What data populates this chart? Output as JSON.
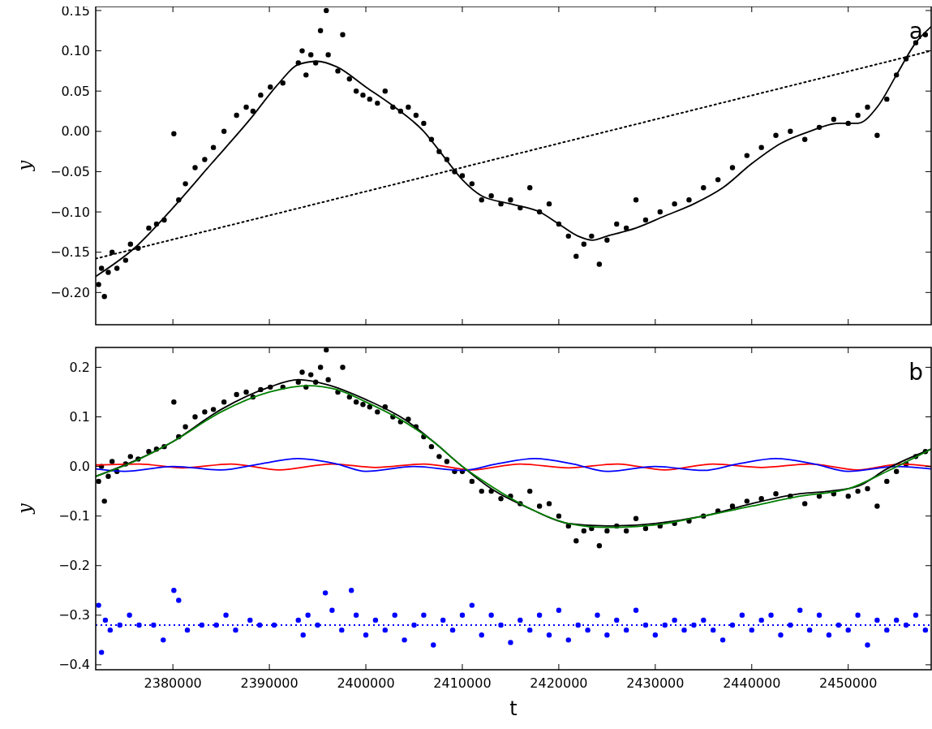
{
  "chart_data": [
    {
      "type": "scatter",
      "ylabel": "y",
      "annotations": [
        "a"
      ],
      "xlim": [
        2372000,
        2458600
      ],
      "ylim": [
        -0.24,
        0.155
      ],
      "tick_labels": "y",
      "xticks": [
        2380000,
        2390000,
        2400000,
        2410000,
        2420000,
        2430000,
        2440000,
        2450000
      ],
      "yticks": [
        {
          "value": -0.2,
          "label": "−0.20"
        },
        {
          "value": -0.15,
          "label": "−0.15"
        },
        {
          "value": -0.1,
          "label": "−0.10"
        },
        {
          "value": -0.05,
          "label": "−0.05"
        },
        {
          "value": 0,
          "label": "0.00"
        },
        {
          "value": 0.05,
          "label": "0.05"
        },
        {
          "value": 0.1,
          "label": "0.10"
        },
        {
          "value": 0.15,
          "label": "0.15"
        }
      ],
      "grid": false,
      "series": [
        {
          "type": "scatter",
          "color": "#000000",
          "marker": "circle",
          "x": [
            2372300,
            2372600,
            2372900,
            2373300,
            2373700,
            2374200,
            2375100,
            2375600,
            2376400,
            2377500,
            2378300,
            2379100,
            2380100,
            2380600,
            2381300,
            2382300,
            2383300,
            2384200,
            2385300,
            2386600,
            2387600,
            2388300,
            2389100,
            2390100,
            2391400,
            2393000,
            2393400,
            2393800,
            2394300,
            2394800,
            2395300,
            2395900,
            2396100,
            2397100,
            2397600,
            2398300,
            2399000,
            2399700,
            2400400,
            2401200,
            2402000,
            2402800,
            2403600,
            2404400,
            2405200,
            2406000,
            2406800,
            2407600,
            2408400,
            2409200,
            2410000,
            2411000,
            2412000,
            2413000,
            2414000,
            2415000,
            2416000,
            2417000,
            2418000,
            2419000,
            2420000,
            2421000,
            2421800,
            2422600,
            2423400,
            2424200,
            2425000,
            2426000,
            2427000,
            2428000,
            2429000,
            2430500,
            2432000,
            2433500,
            2435000,
            2436500,
            2438000,
            2439500,
            2441000,
            2442500,
            2444000,
            2445500,
            2447000,
            2448500,
            2450000,
            2451000,
            2452000,
            2453000,
            2454000,
            2455000,
            2456000,
            2457000,
            2458000
          ],
          "values": [
            -0.19,
            -0.17,
            -0.205,
            -0.175,
            -0.15,
            -0.17,
            -0.16,
            -0.14,
            -0.145,
            -0.12,
            -0.115,
            -0.11,
            -0.003,
            -0.085,
            -0.065,
            -0.045,
            -0.035,
            -0.02,
            0.0,
            0.02,
            0.03,
            0.025,
            0.045,
            0.055,
            0.06,
            0.085,
            0.1,
            0.07,
            0.095,
            0.085,
            0.125,
            0.15,
            0.095,
            0.075,
            0.12,
            0.065,
            0.05,
            0.045,
            0.04,
            0.035,
            0.05,
            0.03,
            0.025,
            0.03,
            0.02,
            0.01,
            -0.01,
            -0.025,
            -0.035,
            -0.05,
            -0.055,
            -0.065,
            -0.085,
            -0.08,
            -0.09,
            -0.085,
            -0.095,
            -0.07,
            -0.1,
            -0.09,
            -0.115,
            -0.13,
            -0.155,
            -0.14,
            -0.13,
            -0.165,
            -0.135,
            -0.115,
            -0.12,
            -0.085,
            -0.11,
            -0.1,
            -0.09,
            -0.085,
            -0.07,
            -0.06,
            -0.045,
            -0.03,
            -0.02,
            -0.005,
            0.0,
            -0.01,
            0.005,
            0.015,
            0.01,
            0.02,
            0.03,
            -0.005,
            0.04,
            0.07,
            0.09,
            0.11,
            0.12
          ]
        },
        {
          "type": "line",
          "color": "#000000",
          "line_style": "solid",
          "x": [
            2372000,
            2376000,
            2380000,
            2384000,
            2388000,
            2391000,
            2393000,
            2395000,
            2397000,
            2400000,
            2403000,
            2406000,
            2408000,
            2410000,
            2412000,
            2415000,
            2418000,
            2420000,
            2422000,
            2423500,
            2425000,
            2428000,
            2431000,
            2434000,
            2437000,
            2440000,
            2443000,
            2446000,
            2449000,
            2451000,
            2453000,
            2455000,
            2457000,
            2458600
          ],
          "values": [
            -0.18,
            -0.145,
            -0.095,
            -0.04,
            0.015,
            0.06,
            0.083,
            0.087,
            0.08,
            0.055,
            0.03,
            0.0,
            -0.03,
            -0.06,
            -0.08,
            -0.09,
            -0.1,
            -0.115,
            -0.13,
            -0.135,
            -0.13,
            -0.12,
            -0.105,
            -0.09,
            -0.07,
            -0.04,
            -0.015,
            0.0,
            0.01,
            0.01,
            0.03,
            0.07,
            0.11,
            0.13
          ]
        },
        {
          "type": "line",
          "color": "#000000",
          "line_style": "dotted",
          "x": [
            2372000,
            2458600
          ],
          "values": [
            -0.158,
            0.1
          ]
        }
      ]
    },
    {
      "type": "scatter",
      "xlabel": "t",
      "ylabel": "y",
      "annotations": [
        "b"
      ],
      "xlim": [
        2372000,
        2458600
      ],
      "ylim": [
        -0.41,
        0.24
      ],
      "xticks": [
        2380000,
        2390000,
        2400000,
        2410000,
        2420000,
        2430000,
        2440000,
        2450000
      ],
      "yticks": [
        {
          "value": -0.4,
          "label": "−0.4"
        },
        {
          "value": -0.3,
          "label": "−0.3"
        },
        {
          "value": -0.2,
          "label": "−0.2"
        },
        {
          "value": -0.1,
          "label": "−0.1"
        },
        {
          "value": 0,
          "label": "0.0"
        },
        {
          "value": 0.1,
          "label": "0.1"
        },
        {
          "value": 0.2,
          "label": "0.2"
        }
      ],
      "grid": false,
      "ref_lines": [
        {
          "axis": "y",
          "value": -0.32,
          "color": "#0000ff",
          "line_style": "dotted"
        }
      ],
      "series": [
        {
          "type": "scatter",
          "color": "#000000",
          "marker": "circle",
          "x": [
            2372300,
            2372600,
            2372900,
            2373300,
            2373700,
            2374200,
            2375100,
            2375600,
            2376400,
            2377500,
            2378300,
            2379100,
            2380100,
            2380600,
            2381300,
            2382300,
            2383300,
            2384200,
            2385300,
            2386600,
            2387600,
            2388300,
            2389100,
            2390100,
            2391400,
            2393000,
            2393400,
            2393800,
            2394300,
            2394800,
            2395300,
            2395900,
            2396100,
            2397100,
            2397600,
            2398300,
            2399000,
            2399700,
            2400400,
            2401200,
            2402000,
            2402800,
            2403600,
            2404400,
            2405200,
            2406000,
            2406800,
            2407600,
            2408400,
            2409200,
            2410000,
            2411000,
            2412000,
            2413000,
            2414000,
            2415000,
            2416000,
            2417000,
            2418000,
            2419000,
            2420000,
            2421000,
            2421800,
            2422600,
            2423400,
            2424200,
            2425000,
            2426000,
            2427000,
            2428000,
            2429000,
            2430500,
            2432000,
            2433500,
            2435000,
            2436500,
            2438000,
            2439500,
            2441000,
            2442500,
            2444000,
            2445500,
            2447000,
            2448500,
            2450000,
            2451000,
            2452000,
            2453000,
            2454000,
            2455000,
            2456000,
            2457000,
            2458000
          ],
          "values": [
            -0.03,
            0.0,
            -0.07,
            -0.02,
            0.01,
            -0.01,
            0.005,
            0.02,
            0.015,
            0.03,
            0.035,
            0.04,
            0.13,
            0.06,
            0.08,
            0.1,
            0.11,
            0.115,
            0.13,
            0.145,
            0.15,
            0.14,
            0.155,
            0.16,
            0.16,
            0.17,
            0.19,
            0.16,
            0.185,
            0.17,
            0.2,
            0.235,
            0.175,
            0.15,
            0.2,
            0.14,
            0.13,
            0.125,
            0.12,
            0.11,
            0.12,
            0.1,
            0.09,
            0.095,
            0.08,
            0.06,
            0.04,
            0.02,
            0.01,
            -0.01,
            -0.01,
            -0.03,
            -0.05,
            -0.05,
            -0.065,
            -0.06,
            -0.075,
            -0.05,
            -0.08,
            -0.075,
            -0.1,
            -0.12,
            -0.15,
            -0.13,
            -0.125,
            -0.16,
            -0.13,
            -0.12,
            -0.13,
            -0.105,
            -0.125,
            -0.12,
            -0.115,
            -0.11,
            -0.1,
            -0.09,
            -0.08,
            -0.07,
            -0.065,
            -0.055,
            -0.06,
            -0.075,
            -0.06,
            -0.055,
            -0.06,
            -0.05,
            -0.045,
            -0.08,
            -0.03,
            -0.01,
            0.005,
            0.02,
            0.03
          ]
        },
        {
          "type": "scatter",
          "color": "#0000ff",
          "marker": "circle",
          "x": [
            2372300,
            2372600,
            2373000,
            2373500,
            2374500,
            2375500,
            2376500,
            2378000,
            2379000,
            2380100,
            2380600,
            2381500,
            2383000,
            2384500,
            2385500,
            2386500,
            2388000,
            2389000,
            2390500,
            2393000,
            2393500,
            2394000,
            2395000,
            2395800,
            2396500,
            2397500,
            2398500,
            2399000,
            2400000,
            2401000,
            2402000,
            2403000,
            2404000,
            2405000,
            2406000,
            2407000,
            2408000,
            2409000,
            2410000,
            2411000,
            2412000,
            2413000,
            2414000,
            2415000,
            2416000,
            2417000,
            2418000,
            2419000,
            2420000,
            2421000,
            2422000,
            2423000,
            2424000,
            2425000,
            2426000,
            2427000,
            2428000,
            2429000,
            2430000,
            2431000,
            2432000,
            2433000,
            2434000,
            2435000,
            2436000,
            2437000,
            2438000,
            2439000,
            2440000,
            2441000,
            2442000,
            2443000,
            2444000,
            2445000,
            2446000,
            2447000,
            2448000,
            2449000,
            2450000,
            2451000,
            2452000,
            2453000,
            2454000,
            2455000,
            2456000,
            2457000,
            2458000
          ],
          "values": [
            -0.28,
            -0.375,
            -0.31,
            -0.33,
            -0.32,
            -0.3,
            -0.32,
            -0.32,
            -0.35,
            -0.25,
            -0.27,
            -0.33,
            -0.32,
            -0.32,
            -0.3,
            -0.33,
            -0.31,
            -0.32,
            -0.32,
            -0.31,
            -0.34,
            -0.3,
            -0.32,
            -0.255,
            -0.29,
            -0.33,
            -0.25,
            -0.3,
            -0.34,
            -0.31,
            -0.33,
            -0.3,
            -0.35,
            -0.32,
            -0.3,
            -0.36,
            -0.31,
            -0.33,
            -0.3,
            -0.28,
            -0.34,
            -0.3,
            -0.32,
            -0.355,
            -0.31,
            -0.33,
            -0.3,
            -0.34,
            -0.29,
            -0.35,
            -0.32,
            -0.33,
            -0.3,
            -0.34,
            -0.31,
            -0.33,
            -0.29,
            -0.32,
            -0.34,
            -0.32,
            -0.31,
            -0.33,
            -0.32,
            -0.31,
            -0.33,
            -0.35,
            -0.32,
            -0.3,
            -0.33,
            -0.31,
            -0.3,
            -0.34,
            -0.32,
            -0.29,
            -0.33,
            -0.3,
            -0.34,
            -0.32,
            -0.33,
            -0.3,
            -0.36,
            -0.31,
            -0.33,
            -0.31,
            -0.32,
            -0.3,
            -0.33
          ]
        },
        {
          "type": "line",
          "color": "#ff0000",
          "line_style": "solid",
          "x": [
            2372000,
            2376500,
            2381000,
            2386000,
            2391000,
            2396500,
            2401000,
            2406000,
            2411000,
            2416000,
            2421000,
            2426000,
            2431000,
            2436000,
            2441000,
            2446000,
            2451000,
            2455500,
            2458600
          ],
          "values": [
            0.003,
            0.005,
            -0.003,
            0.005,
            -0.007,
            0.005,
            -0.002,
            0.005,
            -0.007,
            0.005,
            -0.003,
            0.005,
            -0.007,
            0.005,
            -0.002,
            0.005,
            -0.007,
            0.005,
            0.0
          ]
        },
        {
          "type": "line",
          "color": "#0000ff",
          "line_style": "solid",
          "x": [
            2372000,
            2375000,
            2380000,
            2385000,
            2389000,
            2393000,
            2397000,
            2400000,
            2405000,
            2410000,
            2413500,
            2417500,
            2421500,
            2425000,
            2430000,
            2435000,
            2438500,
            2442500,
            2446500,
            2450000,
            2455000,
            2458600
          ],
          "values": [
            -0.005,
            -0.01,
            0.0,
            -0.007,
            0.005,
            0.016,
            0.005,
            -0.01,
            0.0,
            -0.008,
            0.005,
            0.016,
            0.005,
            -0.01,
            0.0,
            -0.008,
            0.005,
            0.016,
            0.005,
            -0.01,
            0.0,
            -0.005
          ]
        },
        {
          "type": "line",
          "color": "#000000",
          "line_style": "solid",
          "x": [
            2372000,
            2380000,
            2385000,
            2390000,
            2393000,
            2396000,
            2400000,
            2404000,
            2407000,
            2410000,
            2413000,
            2417000,
            2421000,
            2425000,
            2430000,
            2435000,
            2440000,
            2445000,
            2448000,
            2451000,
            2454000,
            2458600
          ],
          "values": [
            -0.02,
            0.05,
            0.115,
            0.16,
            0.175,
            0.165,
            0.135,
            0.095,
            0.05,
            0.0,
            -0.045,
            -0.085,
            -0.115,
            -0.12,
            -0.115,
            -0.1,
            -0.075,
            -0.055,
            -0.05,
            -0.04,
            -0.005,
            0.035
          ]
        },
        {
          "type": "line",
          "color": "#008000",
          "line_style": "solid",
          "x": [
            2372000,
            2376000,
            2380000,
            2385000,
            2390000,
            2394000,
            2397000,
            2400000,
            2404000,
            2407000,
            2410000,
            2413000,
            2417000,
            2421000,
            2425000,
            2430000,
            2435000,
            2440000,
            2445000,
            2450000,
            2454000,
            2458600
          ],
          "values": [
            -0.02,
            0.01,
            0.05,
            0.11,
            0.15,
            0.163,
            0.155,
            0.13,
            0.09,
            0.05,
            0.0,
            -0.04,
            -0.085,
            -0.115,
            -0.123,
            -0.118,
            -0.1,
            -0.08,
            -0.06,
            -0.045,
            -0.01,
            0.035
          ]
        }
      ]
    }
  ]
}
